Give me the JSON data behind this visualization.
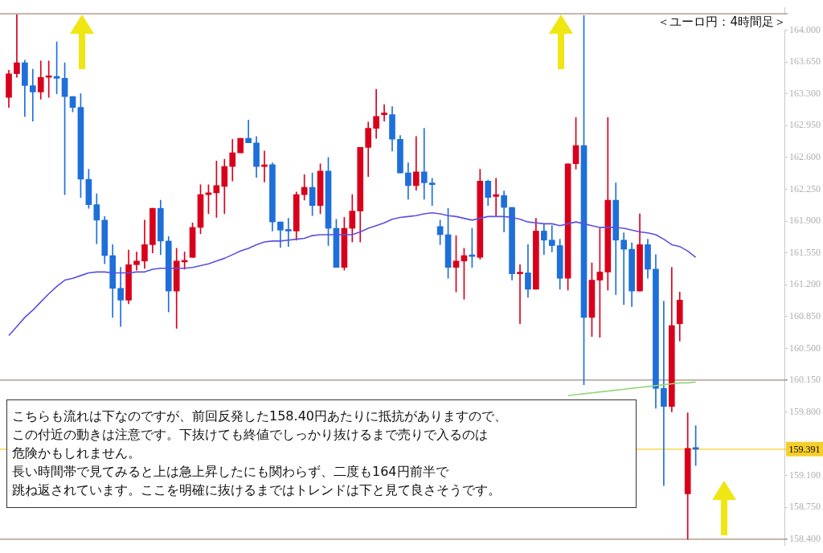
{
  "chart_data": {
    "type": "candlestick",
    "title": "＜ユーロ円：4時間足＞",
    "categories": [
      null,
      null,
      null,
      null,
      null,
      null,
      null,
      null,
      null,
      null,
      null,
      null,
      null,
      null,
      null,
      null,
      null,
      null,
      null,
      null,
      null,
      null,
      null,
      null,
      null,
      null,
      null,
      null,
      null,
      null,
      null,
      null,
      null,
      null,
      null,
      null,
      null,
      null,
      null,
      null,
      null,
      null,
      null,
      null,
      null,
      null,
      null,
      null,
      null,
      null,
      null,
      null,
      null,
      null,
      null,
      null,
      null,
      null,
      null,
      null,
      null,
      null,
      null,
      null,
      null,
      null,
      null,
      null,
      null,
      null,
      null,
      null,
      null,
      null,
      null,
      null,
      null,
      null,
      null,
      null,
      null,
      null,
      null,
      null,
      null,
      null,
      null
    ],
    "ohlc": [
      [
        163.26,
        163.56,
        163.15,
        163.52
      ],
      [
        163.52,
        164.17,
        163.48,
        163.64
      ],
      [
        163.64,
        163.67,
        163.05,
        163.39
      ],
      [
        163.39,
        163.57,
        163.0,
        163.32
      ],
      [
        163.32,
        163.66,
        163.24,
        163.48
      ],
      [
        163.48,
        163.66,
        163.26,
        163.49
      ],
      [
        163.49,
        163.87,
        163.3,
        163.47
      ],
      [
        163.47,
        163.64,
        162.19,
        163.27
      ],
      [
        163.27,
        163.27,
        163.1,
        163.15
      ],
      [
        163.15,
        163.3,
        162.16,
        162.36
      ],
      [
        162.36,
        162.47,
        162.04,
        162.08
      ],
      [
        162.08,
        162.2,
        161.65,
        161.91
      ],
      [
        161.91,
        161.95,
        161.43,
        161.52
      ],
      [
        161.52,
        161.64,
        160.84,
        161.16
      ],
      [
        161.16,
        161.39,
        160.74,
        161.03
      ],
      [
        161.03,
        161.58,
        160.99,
        161.42
      ],
      [
        161.42,
        161.56,
        161.36,
        161.46
      ],
      [
        161.46,
        161.91,
        161.38,
        161.64
      ],
      [
        161.64,
        162.04,
        161.55,
        162.04
      ],
      [
        162.04,
        162.13,
        161.53,
        161.68
      ],
      [
        161.68,
        161.73,
        160.9,
        161.13
      ],
      [
        161.13,
        161.6,
        160.72,
        161.46
      ],
      [
        161.45,
        161.56,
        161.37,
        161.46
      ],
      [
        161.5,
        161.88,
        161.5,
        161.83
      ],
      [
        161.83,
        162.3,
        161.76,
        162.19
      ],
      [
        162.19,
        162.3,
        161.98,
        162.21
      ],
      [
        162.21,
        162.56,
        161.94,
        162.29
      ],
      [
        162.28,
        162.58,
        161.98,
        162.5
      ],
      [
        162.5,
        162.8,
        162.34,
        162.65
      ],
      [
        162.65,
        162.81,
        162.65,
        162.81
      ],
      [
        162.81,
        163.01,
        162.76,
        162.76
      ],
      [
        162.76,
        162.83,
        162.38,
        162.5
      ],
      [
        162.5,
        162.67,
        162.33,
        162.51
      ],
      [
        162.52,
        162.54,
        161.79,
        161.89
      ],
      [
        161.89,
        161.89,
        161.61,
        161.8
      ],
      [
        161.8,
        161.93,
        161.62,
        161.79
      ],
      [
        161.79,
        162.22,
        161.69,
        162.19
      ],
      [
        162.19,
        162.41,
        162.13,
        162.27
      ],
      [
        162.27,
        162.43,
        161.96,
        162.07
      ],
      [
        162.07,
        162.53,
        161.98,
        162.45
      ],
      [
        162.45,
        162.6,
        161.63,
        161.82
      ],
      [
        161.82,
        161.92,
        161.39,
        161.39
      ],
      [
        161.39,
        161.94,
        161.36,
        161.82
      ],
      [
        161.82,
        162.19,
        161.67,
        162.01
      ],
      [
        162.01,
        162.71,
        161.67,
        162.71
      ],
      [
        162.71,
        162.99,
        162.39,
        162.92
      ],
      [
        162.92,
        163.35,
        162.81,
        163.05
      ],
      [
        163.07,
        163.18,
        163.0,
        163.08
      ],
      [
        163.07,
        163.16,
        162.67,
        162.8
      ],
      [
        162.8,
        162.84,
        162.43,
        162.43
      ],
      [
        162.43,
        162.54,
        162.14,
        162.29
      ],
      [
        162.29,
        162.83,
        162.24,
        162.44
      ],
      [
        162.44,
        162.92,
        162.14,
        162.32
      ],
      [
        162.32,
        162.37,
        162.07,
        162.3
      ],
      [
        161.84,
        161.91,
        161.64,
        161.75
      ],
      [
        161.75,
        162.04,
        161.27,
        161.39
      ],
      [
        161.39,
        161.74,
        161.12,
        161.46
      ],
      [
        161.46,
        161.6,
        161.04,
        161.52
      ],
      [
        161.52,
        161.82,
        161.39,
        161.51
      ],
      [
        161.5,
        162.47,
        161.48,
        162.34
      ],
      [
        162.34,
        162.35,
        162.07,
        162.16
      ],
      [
        162.17,
        162.37,
        161.95,
        162.19
      ],
      [
        162.18,
        162.23,
        161.78,
        162.05
      ],
      [
        162.05,
        162.05,
        161.25,
        161.32
      ],
      [
        161.32,
        161.42,
        160.77,
        161.33
      ],
      [
        161.33,
        161.64,
        161.06,
        161.15
      ],
      [
        161.15,
        161.93,
        161.15,
        161.79
      ],
      [
        161.79,
        161.87,
        161.53,
        161.69
      ],
      [
        161.69,
        161.85,
        161.56,
        161.63
      ],
      [
        161.63,
        161.7,
        161.15,
        161.27
      ],
      [
        161.27,
        162.53,
        161.14,
        162.53
      ],
      [
        162.53,
        163.04,
        162.47,
        162.73
      ],
      [
        162.73,
        164.16,
        160.1,
        160.84
      ],
      [
        160.84,
        161.44,
        160.63,
        161.25
      ],
      [
        161.25,
        161.82,
        160.62,
        161.34
      ],
      [
        161.34,
        163.04,
        161.14,
        162.13
      ],
      [
        162.13,
        162.32,
        161.09,
        161.69
      ],
      [
        161.69,
        161.77,
        160.98,
        161.59
      ],
      [
        161.59,
        161.66,
        160.96,
        161.13
      ],
      [
        161.13,
        161.98,
        161.13,
        161.64
      ],
      [
        161.64,
        161.7,
        161.27,
        161.37
      ],
      [
        161.37,
        161.53,
        159.84,
        160.06
      ],
      [
        160.06,
        161.02,
        158.99,
        159.86
      ],
      [
        159.86,
        161.39,
        159.8,
        160.75
      ],
      [
        160.77,
        161.12,
        160.58,
        161.03
      ],
      [
        158.9,
        159.79,
        158.4,
        159.4
      ],
      [
        159.4,
        159.65,
        159.21,
        159.39
      ]
    ],
    "colors": [
      "#d9001b",
      "#d9001b",
      "#1e6fd9",
      "#1e6fd9",
      "#d9001b",
      "#d9001b",
      "#1e6fd9",
      "#1e6fd9",
      "#1e6fd9",
      "#1e6fd9",
      "#1e6fd9",
      "#1e6fd9",
      "#1e6fd9",
      "#1e6fd9",
      "#1e6fd9",
      "#d9001b",
      "#d9001b",
      "#d9001b",
      "#d9001b",
      "#1e6fd9",
      "#1e6fd9",
      "#d9001b",
      "#d9001b",
      "#d9001b",
      "#d9001b",
      "#d9001b",
      "#d9001b",
      "#d9001b",
      "#d9001b",
      "#d9001b",
      "#1e6fd9",
      "#1e6fd9",
      "#d9001b",
      "#1e6fd9",
      "#1e6fd9",
      "#1e6fd9",
      "#d9001b",
      "#d9001b",
      "#1e6fd9",
      "#d9001b",
      "#1e6fd9",
      "#1e6fd9",
      "#d9001b",
      "#d9001b",
      "#d9001b",
      "#d9001b",
      "#d9001b",
      "#d9001b",
      "#1e6fd9",
      "#1e6fd9",
      "#1e6fd9",
      "#d9001b",
      "#1e6fd9",
      "#1e6fd9",
      "#1e6fd9",
      "#1e6fd9",
      "#d9001b",
      "#d9001b",
      "#1e6fd9",
      "#d9001b",
      "#1e6fd9",
      "#d9001b",
      "#1e6fd9",
      "#1e6fd9",
      "#d9001b",
      "#1e6fd9",
      "#d9001b",
      "#1e6fd9",
      "#1e6fd9",
      "#1e6fd9",
      "#d9001b",
      "#d9001b",
      "#1e6fd9",
      "#d9001b",
      "#d9001b",
      "#d9001b",
      "#1e6fd9",
      "#1e6fd9",
      "#1e6fd9",
      "#d9001b",
      "#1e6fd9",
      "#1e6fd9",
      "#1e6fd9",
      "#d9001b",
      "#d9001b",
      "#d9001b",
      "#1e6fd9"
    ],
    "series": [
      {
        "type": "line",
        "color": "#5b4fe3",
        "values": [
          160.64,
          160.74,
          160.84,
          160.92,
          161.01,
          161.1,
          161.18,
          161.25,
          161.27,
          161.3,
          161.33,
          161.34,
          161.34,
          161.33,
          161.33,
          161.33,
          161.34,
          161.34,
          161.37,
          161.38,
          161.38,
          161.38,
          161.38,
          161.39,
          161.41,
          161.43,
          161.46,
          161.49,
          161.53,
          161.57,
          161.6,
          161.64,
          161.67,
          161.68,
          161.68,
          161.69,
          161.7,
          161.71,
          161.74,
          161.75,
          161.75,
          161.75,
          161.75,
          161.75,
          161.78,
          161.82,
          161.85,
          161.88,
          161.92,
          161.94,
          161.95,
          161.96,
          161.98,
          161.99,
          161.98,
          161.96,
          161.95,
          161.93,
          161.91,
          161.93,
          161.95,
          161.95,
          161.95,
          161.94,
          161.92,
          161.89,
          161.88,
          161.87,
          161.87,
          161.85,
          161.87,
          161.89,
          161.87,
          161.85,
          161.83,
          161.83,
          161.83,
          161.82,
          161.8,
          161.78,
          161.77,
          161.75,
          161.7,
          161.64,
          161.62,
          161.57,
          161.5
        ]
      },
      {
        "type": "line",
        "color": "#93d67e",
        "values": [
          null,
          null,
          null,
          null,
          null,
          null,
          null,
          null,
          null,
          null,
          null,
          null,
          null,
          null,
          null,
          null,
          null,
          null,
          null,
          null,
          null,
          null,
          null,
          null,
          null,
          null,
          null,
          null,
          null,
          null,
          null,
          null,
          null,
          null,
          null,
          null,
          null,
          null,
          null,
          null,
          null,
          null,
          null,
          null,
          null,
          null,
          null,
          null,
          null,
          null,
          null,
          null,
          null,
          null,
          null,
          null,
          null,
          null,
          null,
          null,
          null,
          null,
          null,
          null,
          null,
          null,
          null,
          null,
          null,
          null,
          159.98,
          159.99,
          160.0,
          160.01,
          160.02,
          160.03,
          160.04,
          160.05,
          160.06,
          160.07,
          160.08,
          160.09,
          160.1,
          160.11,
          160.12,
          160.12,
          160.13
        ]
      }
    ],
    "ylim": [
      158.33,
      164.25
    ],
    "yticks": [
      {
        "value": 164,
        "label": "164.000"
      },
      {
        "value": 163.65,
        "label": "163.650"
      },
      {
        "value": 163.3,
        "label": "163.300"
      },
      {
        "value": 162.95,
        "label": "162.950"
      },
      {
        "value": 162.6,
        "label": "162.600"
      },
      {
        "value": 162.25,
        "label": "162.250"
      },
      {
        "value": 161.9,
        "label": "161.900"
      },
      {
        "value": 161.55,
        "label": "161.550"
      },
      {
        "value": 161.2,
        "label": "161.200"
      },
      {
        "value": 160.85,
        "label": "160.850"
      },
      {
        "value": 160.5,
        "label": "160.500"
      },
      {
        "value": 160.15,
        "label": "160.150"
      },
      {
        "value": 159.8,
        "label": "159.800"
      },
      {
        "value": 159.1,
        "label": "159.100"
      },
      {
        "value": 158.75,
        "label": "158.750"
      },
      {
        "value": 158.4,
        "label": "158.400"
      }
    ],
    "tick_labels": "y",
    "grid": false,
    "legend": false,
    "marker": "none",
    "ref_lines": [
      {
        "axis": "y",
        "value": 164.18,
        "color": "#a58a7a"
      },
      {
        "axis": "y",
        "value": 160.15,
        "color": "#a58a7a"
      },
      {
        "axis": "y",
        "value": 158.4,
        "color": "#a58a7a"
      },
      {
        "axis": "y",
        "value": 159.391,
        "label": "159.391",
        "color": "#f5cf2a"
      }
    ],
    "annotations": [
      "こちらも流れは下なのですが、前回反発した158.40円あたりに抵抗がありますので、",
      "この付近の動きは注意です。下抜けても終値でしっかり抜けるまで売りで入るのは",
      "危険かもしれません。",
      "長い時間帯で見てみると上は急上昇したにも関わらず、二度も164円前半で",
      "跳ね返されています。ここを明確に抜けるまではトレンドは下と見て良さそうです。"
    ]
  }
}
